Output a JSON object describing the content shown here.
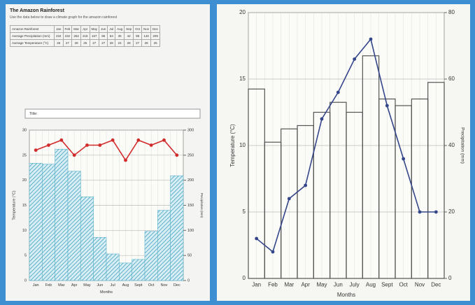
{
  "worksheet": {
    "title": "The Amazon Rainforest",
    "instructions": "Use the data below to draw a climate graph for the amazon rainforest",
    "table": {
      "header": [
        "Amazon Rainforest",
        "Jan",
        "Feb",
        "Mar",
        "Apr",
        "May",
        "Jun",
        "Jul",
        "Aug",
        "Sep",
        "Oct",
        "Nov",
        "Dec"
      ],
      "rows": [
        [
          "Average Precipitation (mm)",
          "234",
          "232",
          "262",
          "218",
          "167",
          "86",
          "53",
          "35",
          "42",
          "98",
          "140",
          "209"
        ],
        [
          "Average Temperature (°C)",
          "26",
          "27",
          "28",
          "25",
          "27",
          "27",
          "28",
          "24",
          "28",
          "27",
          "28",
          "25"
        ]
      ]
    }
  },
  "chart_data": [
    {
      "type": "combo",
      "title": "Title:",
      "ylabel": "Temperature (°C)",
      "y2label": "Precipitation (mm)",
      "xlabel": "Months",
      "categories": [
        "Jan",
        "Feb",
        "Mar",
        "Apr",
        "May",
        "Jun",
        "Jul",
        "Aug",
        "Sept",
        "Oct",
        "Nov",
        "Dec"
      ],
      "ylim": [
        0,
        30
      ],
      "yticks": [
        0,
        5,
        10,
        15,
        20,
        25,
        30
      ],
      "y2lim": [
        0,
        300
      ],
      "y2ticks": [
        0,
        50,
        100,
        150,
        200,
        250,
        300
      ],
      "grid": true,
      "series": [
        {
          "kind": "bar",
          "axis": "y2",
          "color": "#5bb3cc",
          "style": "hatched",
          "values": [
            234,
            232,
            262,
            218,
            167,
            86,
            53,
            35,
            42,
            98,
            140,
            209
          ]
        },
        {
          "kind": "line",
          "color": "#d22b2b",
          "values": [
            26,
            27,
            28,
            25,
            27,
            27,
            28,
            24,
            28,
            27,
            28,
            25
          ]
        }
      ]
    },
    {
      "type": "combo",
      "ylabel": "Temperature (°C)",
      "y2label": "Precipitation (mm)",
      "xlabel": "Months",
      "categories": [
        "Jan",
        "Feb",
        "Mar",
        "Apr",
        "May",
        "Jun",
        "July",
        "Aug",
        "Sept",
        "Oct",
        "Nov",
        "Dec"
      ],
      "ylim": [
        0,
        20
      ],
      "yticks": [
        0,
        5,
        10,
        15,
        20
      ],
      "y2lim": [
        0,
        80
      ],
      "y2ticks": [
        0,
        20,
        40,
        60,
        80
      ],
      "grid": true,
      "series": [
        {
          "kind": "bar",
          "axis": "y2",
          "color": "#555555",
          "style": "outline",
          "values": [
            57,
            41,
            45,
            46,
            50,
            53,
            50,
            67,
            54,
            52,
            54,
            59
          ]
        },
        {
          "kind": "line",
          "color": "#34468a",
          "values": [
            3,
            2,
            6,
            7,
            12,
            14,
            16.5,
            18,
            13,
            9,
            5,
            5
          ]
        }
      ]
    }
  ]
}
